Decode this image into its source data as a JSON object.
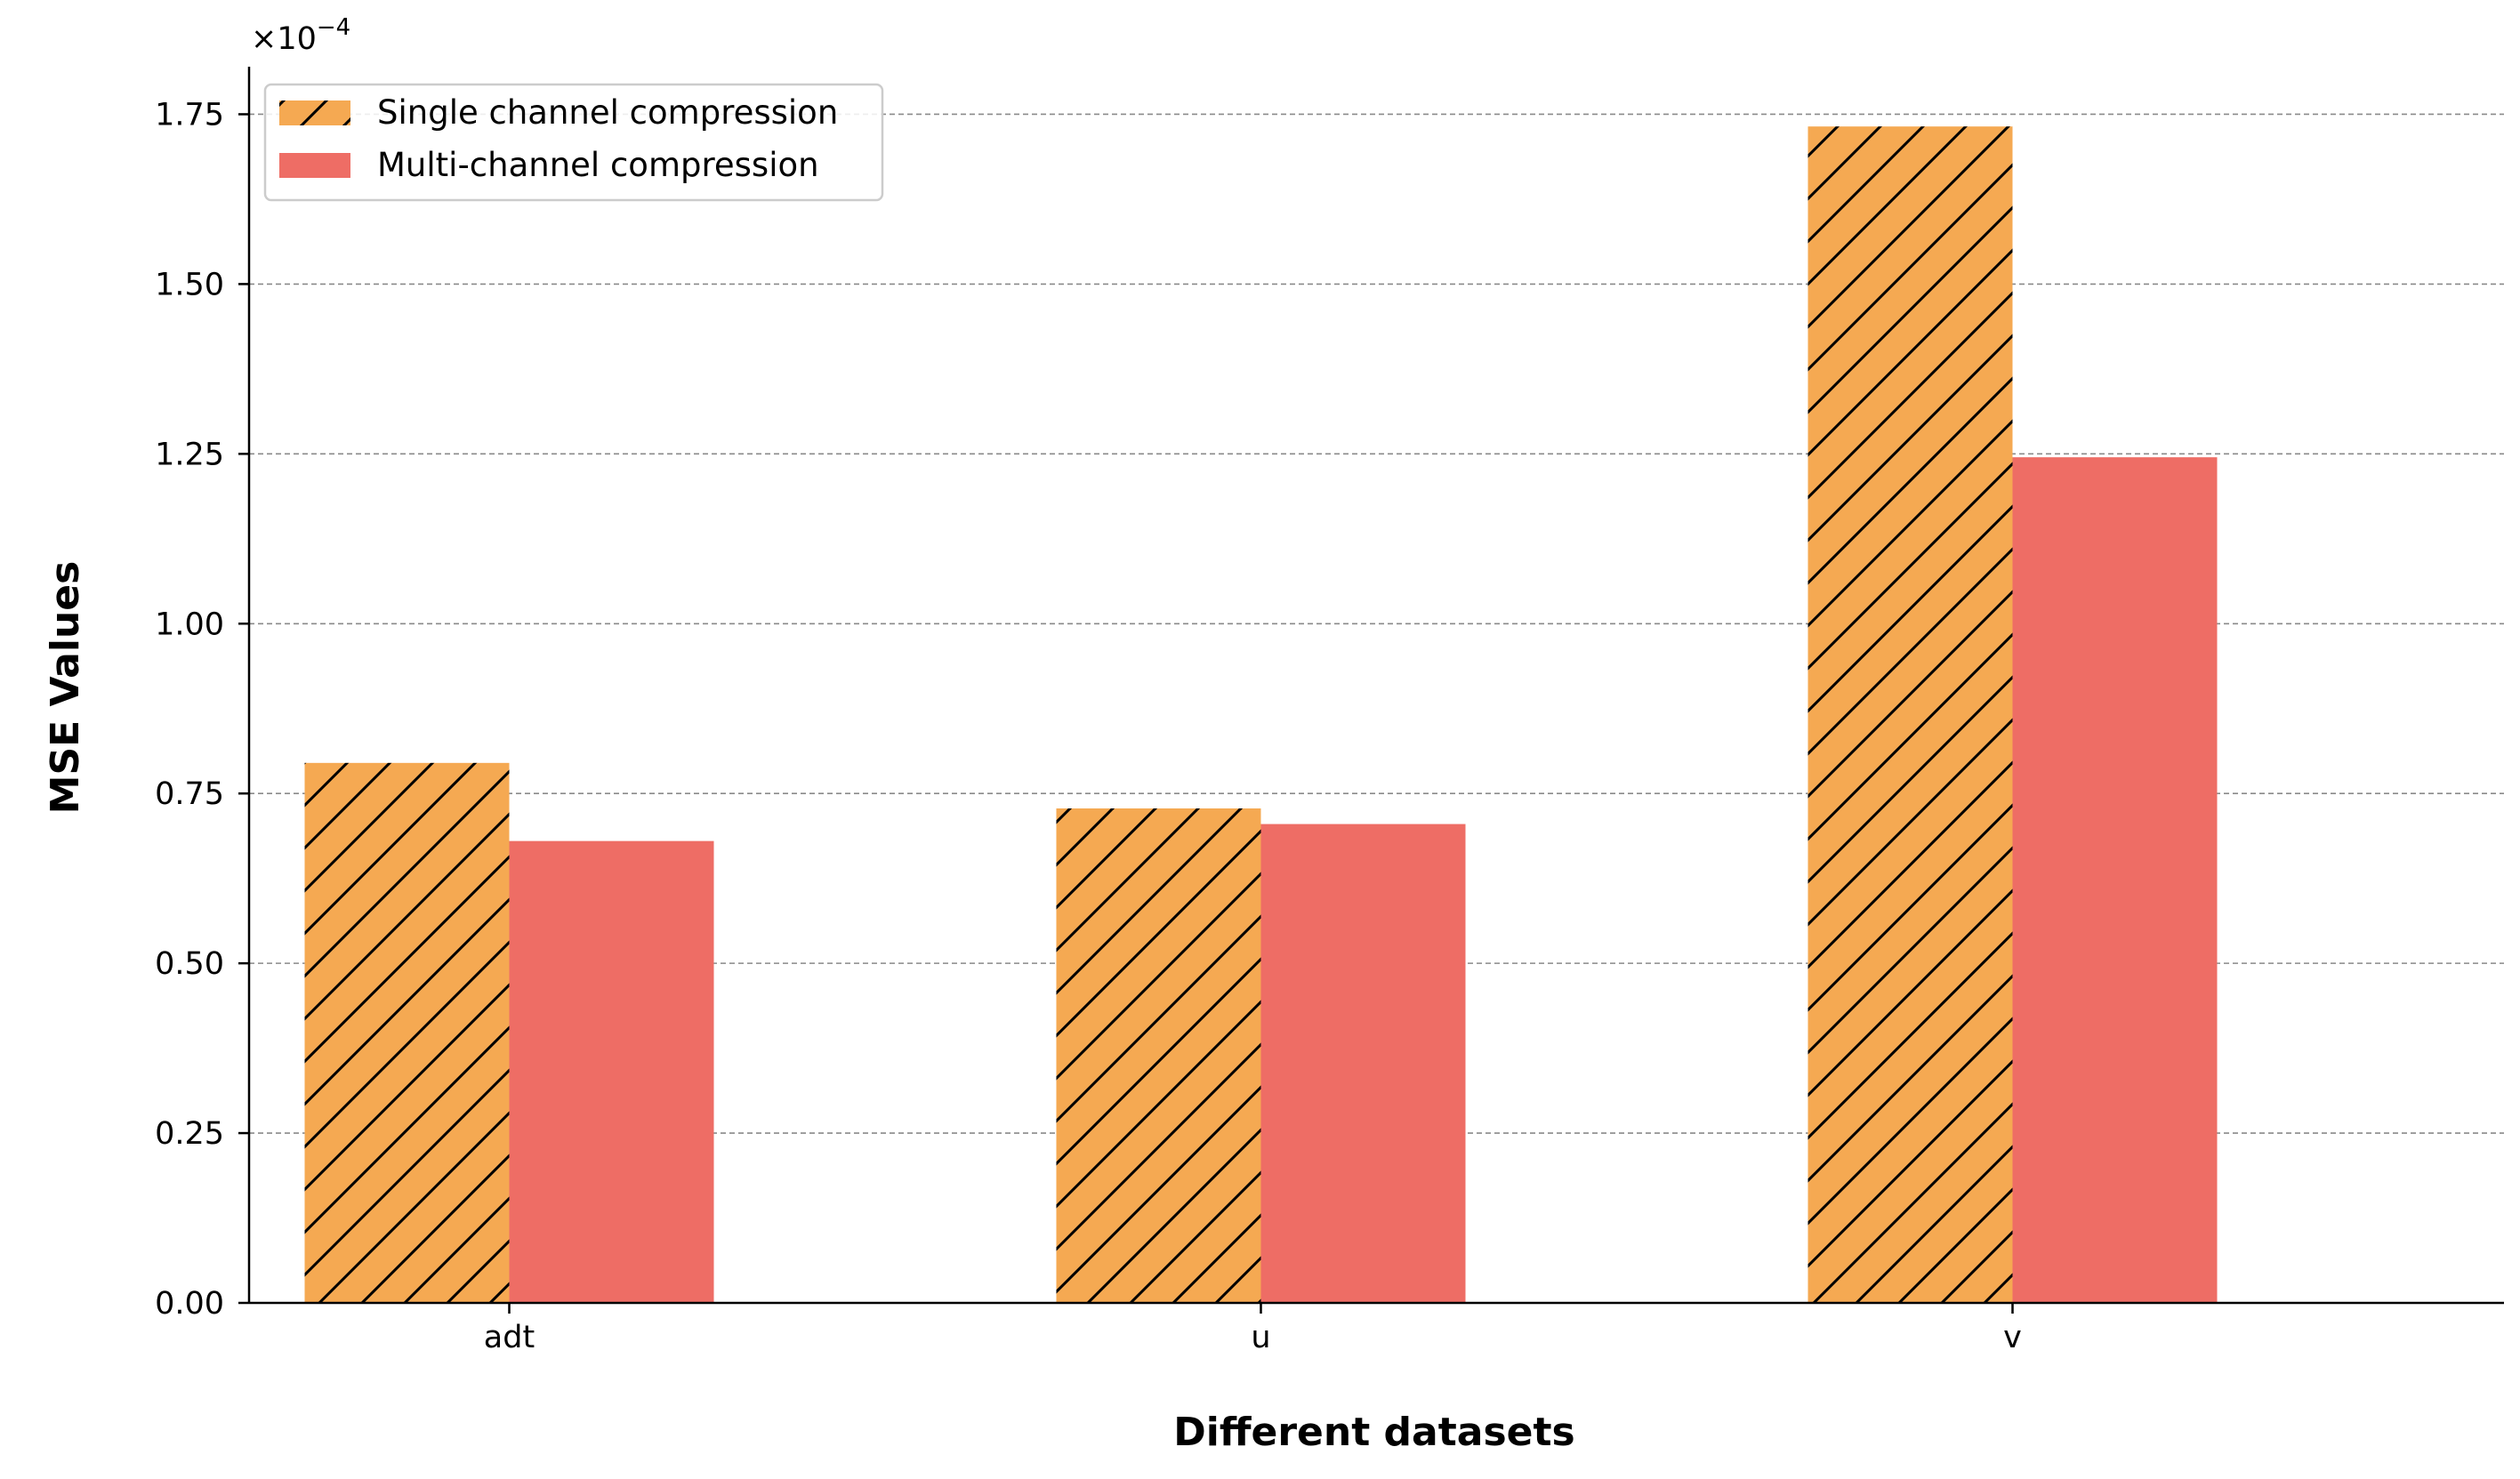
{
  "chart_data": {
    "type": "bar",
    "categories": [
      "adt",
      "u",
      "v"
    ],
    "series": [
      {
        "name": "Single channel compression",
        "values": [
          0.795,
          0.728,
          1.732
        ],
        "color": "#F5A952",
        "hatch": "diagonal"
      },
      {
        "name": "Multi-channel compression",
        "values": [
          0.68,
          0.705,
          1.245
        ],
        "color": "#EE6D65",
        "hatch": "none"
      }
    ],
    "xlabel": "Different datasets",
    "ylabel": "MSE Values",
    "y_offset_label": "×10",
    "y_offset_exponent": "−4",
    "ylim": [
      0,
      1.82
    ],
    "yticks": [
      0.0,
      0.25,
      0.5,
      0.75,
      1.0,
      1.25,
      1.5,
      1.75
    ],
    "ytick_labels": [
      "0.00",
      "0.25",
      "0.50",
      "0.75",
      "1.00",
      "1.25",
      "1.50",
      "1.75"
    ],
    "grid": "horizontal-dashed",
    "legend_position": "top-left",
    "spines": "left-bottom"
  }
}
